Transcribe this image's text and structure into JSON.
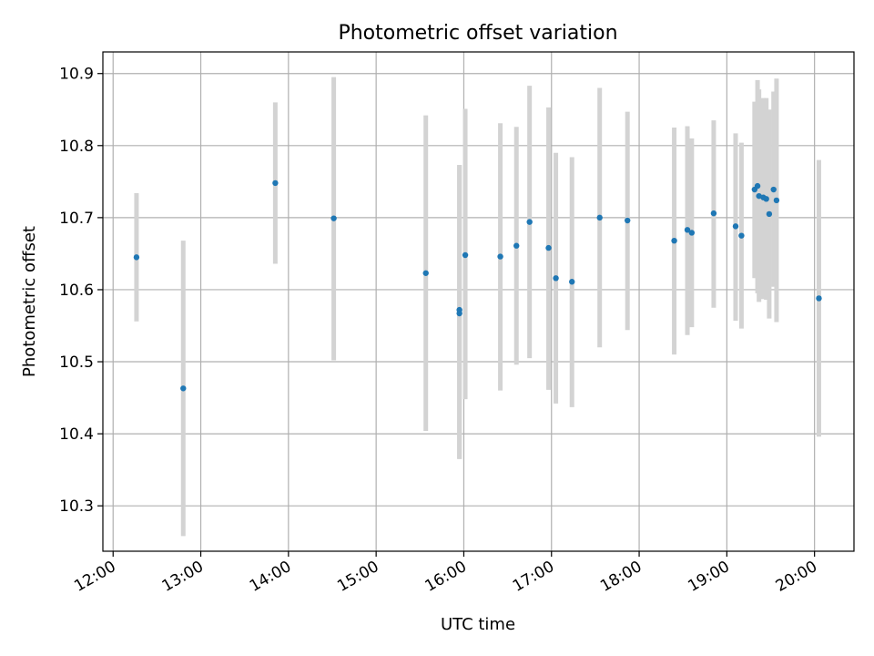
{
  "chart_data": {
    "type": "scatter",
    "title": "Photometric offset variation",
    "xlabel": "UTC time",
    "ylabel": "Photometric offset",
    "x_unit": "UTC time (HH:MM)",
    "xlim": [
      "11:53",
      "20:27"
    ],
    "ylim": [
      10.237,
      10.93
    ],
    "x_ticks": [
      "12:00",
      "13:00",
      "14:00",
      "15:00",
      "16:00",
      "17:00",
      "18:00",
      "19:00",
      "20:00"
    ],
    "y_ticks": [
      10.3,
      10.4,
      10.5,
      10.6,
      10.7,
      10.8,
      10.9
    ],
    "y_tick_labels": [
      "10.3",
      "10.4",
      "10.5",
      "10.6",
      "10.7",
      "10.8",
      "10.9"
    ],
    "grid": true,
    "errorbar_color": "#d3d3d3",
    "marker_color": "#1f77b4",
    "points": [
      {
        "x": "12:16",
        "y": 10.645,
        "low": 10.556,
        "high": 10.734
      },
      {
        "x": "12:48",
        "y": 10.463,
        "low": 10.258,
        "high": 10.668
      },
      {
        "x": "13:51",
        "y": 10.748,
        "low": 10.636,
        "high": 10.86
      },
      {
        "x": "14:31",
        "y": 10.699,
        "low": 10.502,
        "high": 10.895
      },
      {
        "x": "15:34",
        "y": 10.623,
        "low": 10.404,
        "high": 10.842
      },
      {
        "x": "15:57",
        "y": 10.567,
        "low": 10.365,
        "high": 10.773
      },
      {
        "x": "15:57",
        "y": 10.572,
        "low": 10.365,
        "high": 10.773
      },
      {
        "x": "16:01",
        "y": 10.648,
        "low": 10.448,
        "high": 10.851
      },
      {
        "x": "16:25",
        "y": 10.646,
        "low": 10.46,
        "high": 10.831
      },
      {
        "x": "16:36",
        "y": 10.661,
        "low": 10.496,
        "high": 10.826
      },
      {
        "x": "16:45",
        "y": 10.694,
        "low": 10.505,
        "high": 10.883
      },
      {
        "x": "16:58",
        "y": 10.658,
        "low": 10.461,
        "high": 10.853
      },
      {
        "x": "17:03",
        "y": 10.616,
        "low": 10.442,
        "high": 10.79
      },
      {
        "x": "17:14",
        "y": 10.611,
        "low": 10.437,
        "high": 10.784
      },
      {
        "x": "17:33",
        "y": 10.7,
        "low": 10.52,
        "high": 10.88
      },
      {
        "x": "17:52",
        "y": 10.696,
        "low": 10.544,
        "high": 10.847
      },
      {
        "x": "18:24",
        "y": 10.668,
        "low": 10.51,
        "high": 10.825
      },
      {
        "x": "18:33",
        "y": 10.683,
        "low": 10.537,
        "high": 10.827
      },
      {
        "x": "18:36",
        "y": 10.679,
        "low": 10.548,
        "high": 10.81
      },
      {
        "x": "18:51",
        "y": 10.706,
        "low": 10.575,
        "high": 10.835
      },
      {
        "x": "19:06",
        "y": 10.688,
        "low": 10.557,
        "high": 10.817
      },
      {
        "x": "19:10",
        "y": 10.675,
        "low": 10.546,
        "high": 10.804
      },
      {
        "x": "19:19",
        "y": 10.739,
        "low": 10.616,
        "high": 10.861
      },
      {
        "x": "19:21",
        "y": 10.744,
        "low": 10.595,
        "high": 10.891
      },
      {
        "x": "19:22",
        "y": 10.73,
        "low": 10.583,
        "high": 10.878
      },
      {
        "x": "19:25",
        "y": 10.728,
        "low": 10.587,
        "high": 10.866
      },
      {
        "x": "19:27",
        "y": 10.726,
        "low": 10.586,
        "high": 10.866
      },
      {
        "x": "19:29",
        "y": 10.705,
        "low": 10.56,
        "high": 10.85
      },
      {
        "x": "19:32",
        "y": 10.739,
        "low": 10.604,
        "high": 10.875
      },
      {
        "x": "19:34",
        "y": 10.724,
        "low": 10.555,
        "high": 10.893
      },
      {
        "x": "20:03",
        "y": 10.588,
        "low": 10.396,
        "high": 10.78
      }
    ]
  }
}
